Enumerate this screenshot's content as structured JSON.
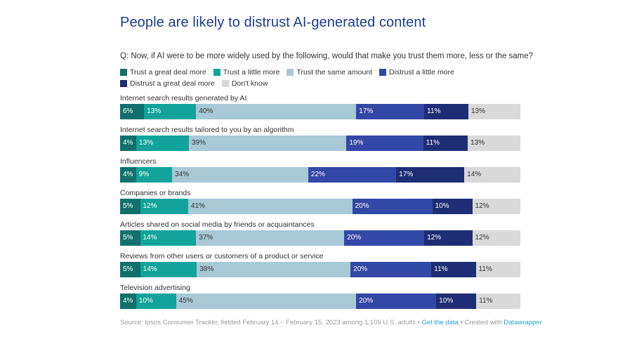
{
  "title": "People are likely to distrust AI-generated content",
  "question": "Q: Now, if AI were to be more widely used by the following, would that make you trust them more, less or the same?",
  "chart_data": {
    "type": "bar",
    "orientation": "horizontal",
    "stacked": true,
    "title": "People are likely to distrust AI-generated content",
    "xlim": [
      0,
      100
    ],
    "legend_position": "top-left",
    "categories": [
      "Internet search results generated by AI",
      "Internet search results tailored to you by an algorithm",
      "Influencers",
      "Companies or brands",
      "Articles shared on social media by friends or acquaintances",
      "Reviews from other users or customers of a product or service",
      "Television advertising"
    ],
    "series": [
      {
        "name": "Trust a great deal more",
        "color": "#10706b",
        "text_color": "#ffffff",
        "values": [
          6,
          4,
          4,
          5,
          5,
          5,
          4
        ]
      },
      {
        "name": "Trust a little more",
        "color": "#12a39a",
        "text_color": "#ffffff",
        "values": [
          13,
          13,
          9,
          12,
          14,
          14,
          10
        ]
      },
      {
        "name": "Trust the same amount",
        "color": "#a8c8d6",
        "text_color": "#333333",
        "values": [
          40,
          39,
          34,
          41,
          37,
          38,
          45
        ]
      },
      {
        "name": "Distrust a little more",
        "color": "#3347a6",
        "text_color": "#ffffff",
        "values": [
          17,
          19,
          22,
          20,
          20,
          20,
          20
        ]
      },
      {
        "name": "Distrust a great deal more",
        "color": "#1f2d74",
        "text_color": "#ffffff",
        "values": [
          11,
          11,
          17,
          10,
          12,
          11,
          10
        ]
      },
      {
        "name": "Don't know",
        "color": "#d9d9d9",
        "text_color": "#333333",
        "values": [
          13,
          13,
          14,
          12,
          12,
          11,
          11
        ]
      }
    ]
  },
  "footer": {
    "source": "Source: Ipsos Consumer Tracker, fielded February 14 – February 15, 2023 among 1,109 U.S. adults •",
    "get_data": "Get the data",
    "sep": " • Created with ",
    "datawrapper": "Datawrapper"
  }
}
